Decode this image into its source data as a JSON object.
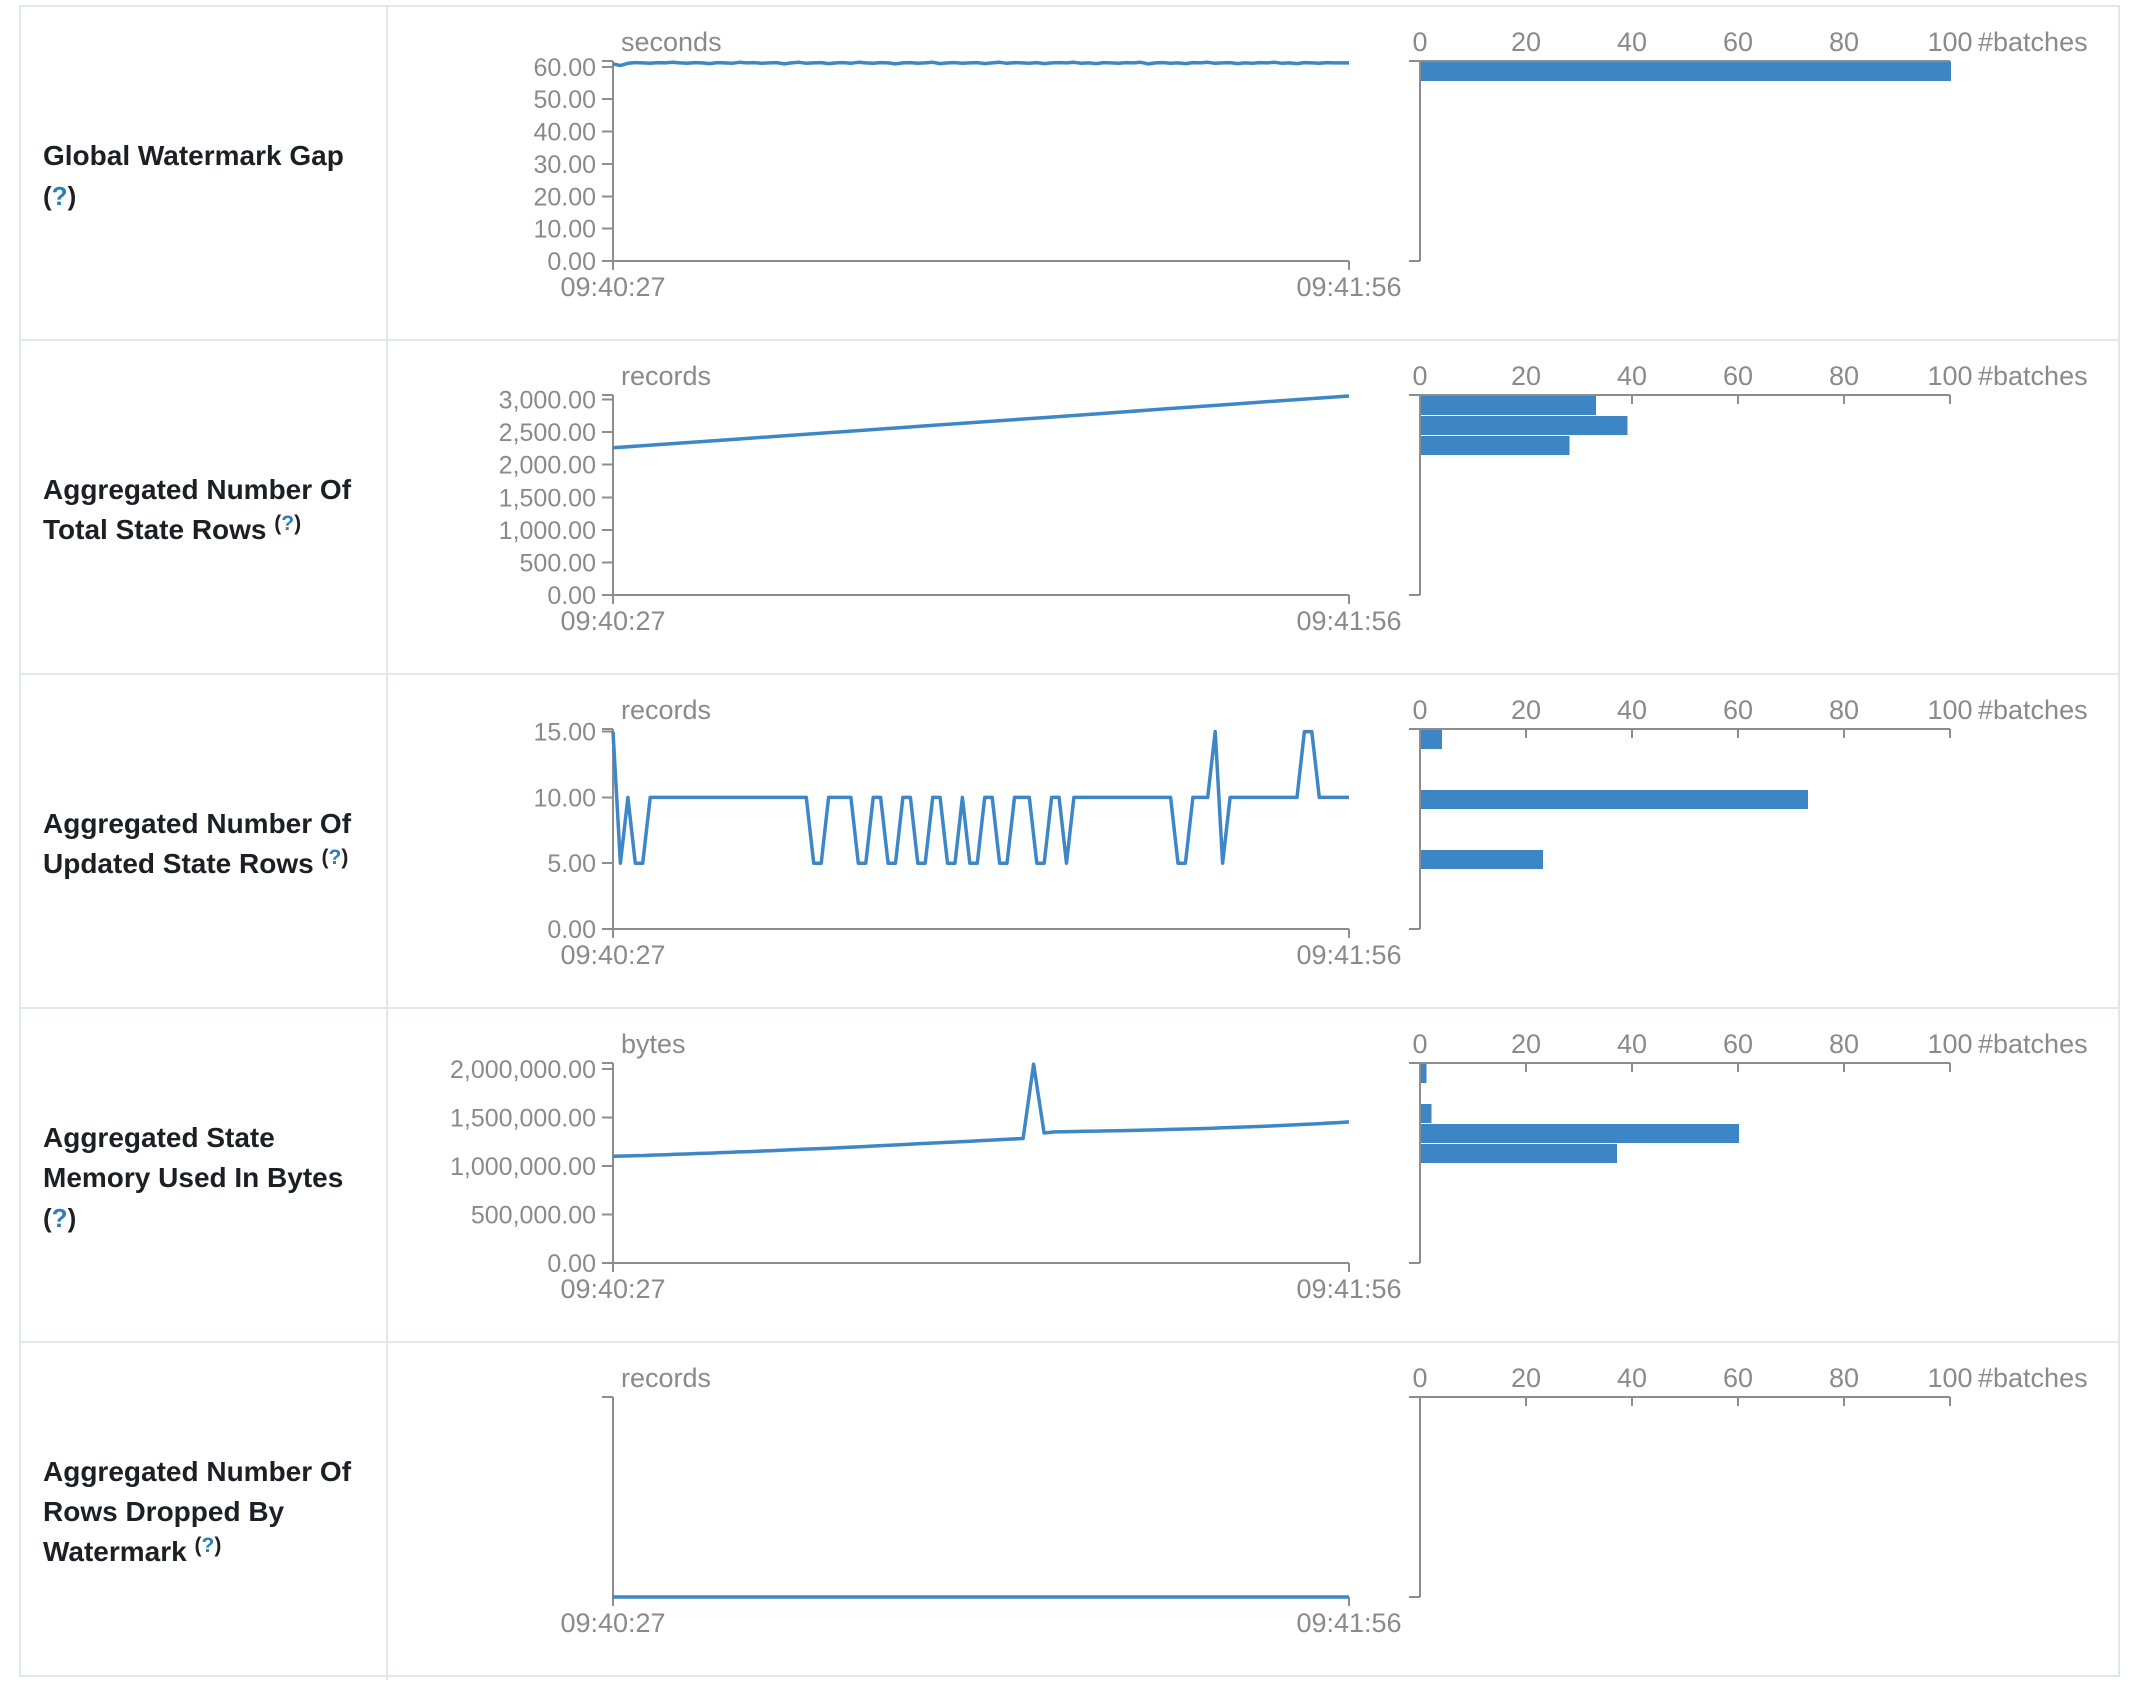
{
  "page": {
    "description": "Structured Streaming query statistics table: watermark and state metrics, timelines and batch histograms"
  },
  "colors": {
    "line_blue": "#3e87c6",
    "bar_blue": "#3c86c6",
    "axis_gray": "#8d8d8d",
    "tick_text_gray": "#8a8a8a",
    "label_dark": "#1c2025",
    "help_link_blue": "#2d7dbb",
    "border_gray": "#e3e6ea"
  },
  "chart_data": [
    {
      "metric": "Global Watermark Gap (?)",
      "label_lines": [
        "Global Watermark Gap",
        "(?)"
      ],
      "timeline": {
        "type": "line",
        "unit": "seconds",
        "x_start": "09:40:27",
        "x_end": "09:41:56",
        "ymax": 61.8,
        "yticks": [
          {
            "v": 60,
            "label": "60.00"
          },
          {
            "v": 50,
            "label": "50.00"
          },
          {
            "v": 40,
            "label": "40.00"
          },
          {
            "v": 30,
            "label": "30.00"
          },
          {
            "v": 20,
            "label": "20.00"
          },
          {
            "v": 10,
            "label": "10.00"
          },
          {
            "v": 0,
            "label": "0.00"
          }
        ],
        "values": [
          60.9,
          60.4,
          61.1,
          61.3,
          61.2,
          61.1,
          61.3,
          61.2,
          61.4,
          61.2,
          61.1,
          61.3,
          61.2,
          61.0,
          61.3,
          61.2,
          61.1,
          61.4,
          61.2,
          61.3,
          61.1,
          61.2,
          61.3,
          60.9,
          61.2,
          61.4,
          61.1,
          61.2,
          61.3,
          61.0,
          61.2,
          61.3,
          61.1,
          61.4,
          61.2,
          61.1,
          61.3,
          61.2,
          60.9,
          61.2,
          61.3,
          61.1,
          61.2,
          61.4,
          61.0,
          61.2,
          61.3,
          61.1,
          61.2,
          61.3,
          61.0,
          61.2,
          61.4,
          61.1,
          61.3,
          61.2,
          61.1,
          61.3,
          61.0,
          61.2,
          61.3,
          61.2,
          61.4,
          61.1,
          61.2,
          61.0,
          61.3,
          61.2,
          61.1,
          61.3,
          61.2,
          61.4,
          60.9,
          61.2,
          61.3,
          61.1,
          61.2,
          61.0,
          61.3,
          61.2,
          61.4,
          61.1,
          61.2,
          61.3,
          61.0,
          61.2,
          61.1,
          61.3,
          61.2,
          61.4,
          61.1,
          61.2,
          61.0,
          61.3,
          61.2,
          61.1,
          61.3,
          61.2,
          61.2,
          61.2
        ]
      },
      "histogram": {
        "type": "bar",
        "axis_label": "#batches",
        "xticks": [
          0,
          20,
          40,
          60,
          80,
          100
        ],
        "xmax": 100,
        "bins": [
          {
            "bin": 0,
            "count": 100
          }
        ]
      }
    },
    {
      "metric": "Aggregated Number Of Total State Rows (?)",
      "label_lines": [
        "Aggregated Number Of",
        "Total State Rows (?)"
      ],
      "timeline": {
        "type": "line",
        "unit": "records",
        "x_start": "09:40:27",
        "x_end": "09:41:56",
        "ymax": 3070,
        "yticks": [
          {
            "v": 3000,
            "label": "3,000.00"
          },
          {
            "v": 2500,
            "label": "2,500.00"
          },
          {
            "v": 2000,
            "label": "2,000.00"
          },
          {
            "v": 1500,
            "label": "1,500.00"
          },
          {
            "v": 1000,
            "label": "1,000.00"
          },
          {
            "v": 500,
            "label": "500.00"
          },
          {
            "v": 0,
            "label": "0.00"
          }
        ],
        "values": [
          2260,
          2325,
          2392,
          2458,
          2524,
          2590,
          2656,
          2722,
          2788,
          2856,
          2922,
          2990,
          3055
        ]
      },
      "histogram": {
        "type": "bar",
        "axis_label": "#batches",
        "xticks": [
          0,
          20,
          40,
          60,
          80,
          100
        ],
        "xmax": 100,
        "bins": [
          {
            "bin": 0,
            "count": 33
          },
          {
            "bin": 1,
            "count": 39
          },
          {
            "bin": 2,
            "count": 28
          }
        ]
      }
    },
    {
      "metric": "Aggregated Number Of Updated State Rows (?)",
      "label_lines": [
        "Aggregated Number Of",
        "Updated State Rows (?)"
      ],
      "timeline": {
        "type": "line",
        "unit": "records",
        "x_start": "09:40:27",
        "x_end": "09:41:56",
        "ymax": 15.2,
        "yticks": [
          {
            "v": 15,
            "label": "15.00"
          },
          {
            "v": 10,
            "label": "10.00"
          },
          {
            "v": 5,
            "label": "5.00"
          },
          {
            "v": 0,
            "label": "0.00"
          }
        ],
        "values": [
          15,
          5,
          10,
          5,
          5,
          10,
          10,
          10,
          10,
          10,
          10,
          10,
          10,
          10,
          10,
          10,
          10,
          10,
          10,
          10,
          10,
          10,
          10,
          10,
          10,
          10,
          10,
          5,
          5,
          10,
          10,
          10,
          10,
          5,
          5,
          10,
          10,
          5,
          5,
          10,
          10,
          5,
          5,
          10,
          10,
          5,
          5,
          10,
          5,
          5,
          10,
          10,
          5,
          5,
          10,
          10,
          10,
          5,
          5,
          10,
          10,
          5,
          10,
          10,
          10,
          10,
          10,
          10,
          10,
          10,
          10,
          10,
          10,
          10,
          10,
          10,
          5,
          5,
          10,
          10,
          10,
          15,
          5,
          10,
          10,
          10,
          10,
          10,
          10,
          10,
          10,
          10,
          10,
          15,
          15,
          10,
          10,
          10,
          10,
          10
        ]
      },
      "histogram": {
        "type": "bar",
        "axis_label": "#batches",
        "xticks": [
          0,
          20,
          40,
          60,
          80,
          100
        ],
        "xmax": 100,
        "bins": [
          {
            "bin": 0,
            "count": 4
          },
          {
            "bin": 3,
            "count": 73
          },
          {
            "bin": 6,
            "count": 23
          }
        ]
      }
    },
    {
      "metric": "Aggregated State Memory Used In Bytes (?)",
      "label_lines": [
        "Aggregated State",
        "Memory Used In Bytes",
        "(?)"
      ],
      "timeline": {
        "type": "line",
        "unit": "bytes",
        "x_start": "09:40:27",
        "x_end": "09:41:56",
        "ymax": 2062000,
        "yticks": [
          {
            "v": 2000000,
            "label": "2,000,000.00"
          },
          {
            "v": 1500000,
            "label": "1,500,000.00"
          },
          {
            "v": 1000000,
            "label": "1,000,000.00"
          },
          {
            "v": 500000,
            "label": "500,000.00"
          },
          {
            "v": 0,
            "label": "0.00"
          }
        ],
        "values": [
          1100000,
          1103000,
          1106000,
          1108000,
          1113000,
          1116000,
          1121000,
          1124000,
          1129000,
          1132000,
          1137000,
          1140000,
          1145000,
          1149000,
          1154000,
          1158000,
          1163000,
          1167000,
          1172000,
          1176000,
          1181000,
          1186000,
          1191000,
          1196000,
          1201000,
          1207000,
          1212000,
          1218000,
          1223000,
          1229000,
          1234000,
          1240000,
          1245000,
          1251000,
          1256000,
          1262000,
          1267000,
          1273000,
          1278000,
          1284000,
          2050000,
          1340000,
          1352000,
          1354000,
          1356000,
          1358000,
          1360000,
          1362000,
          1364000,
          1366000,
          1368000,
          1371000,
          1374000,
          1377000,
          1380000,
          1383000,
          1386000,
          1390000,
          1394000,
          1398000,
          1402000,
          1406000,
          1410000,
          1415000,
          1420000,
          1425000,
          1430000,
          1436000,
          1442000,
          1448000,
          1455000
        ]
      },
      "histogram": {
        "type": "bar",
        "axis_label": "#batches",
        "xticks": [
          0,
          20,
          40,
          60,
          80,
          100
        ],
        "xmax": 100,
        "bins": [
          {
            "bin": 0,
            "count": 1
          },
          {
            "bin": 2,
            "count": 2
          },
          {
            "bin": 3,
            "count": 60
          },
          {
            "bin": 4,
            "count": 37
          }
        ]
      }
    },
    {
      "metric": "Aggregated Number Of Rows Dropped By Watermark (?)",
      "label_lines": [
        "Aggregated Number Of",
        "Rows Dropped By",
        "Watermark (?)"
      ],
      "timeline": {
        "type": "line",
        "unit": "records",
        "x_start": "09:40:27",
        "x_end": "09:41:56",
        "ymax": 1,
        "yticks": [],
        "values": [
          0,
          0,
          0,
          0,
          0,
          0,
          0,
          0,
          0,
          0
        ]
      },
      "histogram": {
        "type": "bar",
        "axis_label": "#batches",
        "xticks": [
          0,
          20,
          40,
          60,
          80,
          100
        ],
        "xmax": 100,
        "bins": []
      }
    }
  ]
}
